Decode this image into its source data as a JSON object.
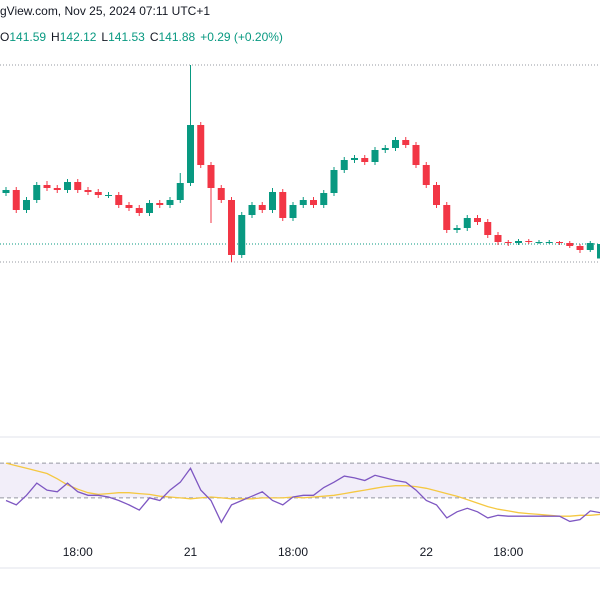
{
  "chart_data": {
    "type": "candlestick",
    "source": "gView.com, Nov 25, 2024 07:11 UTC+1",
    "ohlc_header": [
      {
        "label": "O",
        "value": "141.59"
      },
      {
        "label": "H",
        "value": "142.12"
      },
      {
        "label": "L",
        "value": "141.53"
      },
      {
        "label": "C",
        "value": "141.88"
      }
    ],
    "change": "+0.29 (+0.20%)",
    "up_color": "#089981",
    "down_color": "#f23645",
    "ylim": [
      138.16,
      146.76
    ],
    "xticks": [
      {
        "value": 7,
        "label": "18:00"
      },
      {
        "value": 18,
        "label": "21"
      },
      {
        "value": 28,
        "label": "18:00"
      },
      {
        "value": 41,
        "label": "22"
      },
      {
        "value": 49,
        "label": "18:00"
      }
    ],
    "ohlc": [
      [
        142.9,
        143.02,
        142.84,
        142.96
      ],
      [
        142.96,
        143.02,
        142.5,
        142.56
      ],
      [
        142.56,
        142.82,
        142.5,
        142.76
      ],
      [
        142.76,
        143.12,
        142.7,
        143.06
      ],
      [
        143.06,
        143.14,
        142.94,
        143.0
      ],
      [
        143.0,
        143.06,
        142.9,
        142.96
      ],
      [
        142.96,
        143.18,
        142.9,
        143.12
      ],
      [
        143.12,
        143.18,
        142.9,
        142.96
      ],
      [
        142.96,
        143.02,
        142.86,
        142.92
      ],
      [
        142.92,
        142.98,
        142.8,
        142.86
      ],
      [
        142.86,
        142.92,
        142.8,
        142.86
      ],
      [
        142.86,
        142.92,
        142.6,
        142.66
      ],
      [
        142.66,
        142.72,
        142.54,
        142.6
      ],
      [
        142.6,
        142.66,
        142.44,
        142.5
      ],
      [
        142.5,
        142.76,
        142.44,
        142.7
      ],
      [
        142.7,
        142.76,
        142.6,
        142.66
      ],
      [
        142.66,
        142.82,
        142.6,
        142.76
      ],
      [
        142.76,
        143.3,
        142.7,
        143.1
      ],
      [
        143.1,
        145.46,
        143.04,
        144.26
      ],
      [
        144.26,
        144.32,
        143.4,
        143.46
      ],
      [
        143.46,
        143.52,
        142.3,
        143.0
      ],
      [
        143.0,
        143.06,
        142.7,
        142.76
      ],
      [
        142.76,
        142.82,
        141.52,
        141.66
      ],
      [
        141.66,
        142.52,
        141.6,
        142.46
      ],
      [
        142.46,
        142.72,
        142.4,
        142.66
      ],
      [
        142.66,
        142.72,
        142.5,
        142.56
      ],
      [
        142.56,
        143.0,
        142.5,
        142.92
      ],
      [
        142.92,
        142.98,
        142.34,
        142.4
      ],
      [
        142.4,
        142.72,
        142.34,
        142.66
      ],
      [
        142.66,
        142.82,
        142.6,
        142.76
      ],
      [
        142.76,
        142.82,
        142.6,
        142.66
      ],
      [
        142.66,
        142.96,
        142.6,
        142.9
      ],
      [
        142.9,
        143.42,
        142.84,
        143.36
      ],
      [
        143.36,
        143.62,
        143.3,
        143.56
      ],
      [
        143.56,
        143.66,
        143.5,
        143.6
      ],
      [
        143.6,
        143.66,
        143.46,
        143.52
      ],
      [
        143.52,
        143.82,
        143.46,
        143.76
      ],
      [
        143.76,
        143.86,
        143.7,
        143.8
      ],
      [
        143.8,
        144.02,
        143.74,
        143.96
      ],
      [
        143.96,
        144.02,
        143.8,
        143.86
      ],
      [
        143.86,
        143.92,
        143.4,
        143.46
      ],
      [
        143.46,
        143.52,
        143.0,
        143.06
      ],
      [
        143.06,
        143.12,
        142.6,
        142.66
      ],
      [
        142.66,
        142.72,
        142.1,
        142.16
      ],
      [
        142.16,
        142.26,
        142.1,
        142.2
      ],
      [
        142.2,
        142.46,
        142.14,
        142.4
      ],
      [
        142.4,
        142.46,
        142.26,
        142.32
      ],
      [
        142.32,
        142.38,
        142.0,
        142.06
      ],
      [
        142.06,
        142.12,
        141.86,
        141.92
      ],
      [
        141.92,
        141.96,
        141.84,
        141.9
      ],
      [
        141.9,
        141.98,
        141.86,
        141.94
      ],
      [
        141.94,
        141.98,
        141.88,
        141.92
      ],
      [
        141.92,
        141.96,
        141.88,
        141.92
      ],
      [
        141.92,
        141.96,
        141.88,
        141.92
      ],
      [
        141.92,
        141.94,
        141.86,
        141.9
      ],
      [
        141.9,
        141.94,
        141.8,
        141.84
      ],
      [
        141.84,
        141.88,
        141.7,
        141.76
      ],
      [
        141.76,
        141.94,
        141.72,
        141.9
      ],
      [
        141.59,
        142.12,
        141.53,
        141.88
      ]
    ],
    "rsi": {
      "ylim": [
        0,
        100
      ],
      "levels": [
        70,
        30
      ],
      "color": "#7e57c2",
      "ma_color": "#f5c842",
      "band_color": "#7e57c2",
      "values": [
        27,
        22,
        33,
        47,
        39,
        37,
        47,
        37,
        33,
        33,
        31,
        27,
        22,
        16,
        30,
        27,
        39,
        48,
        64,
        39,
        27,
        2,
        22,
        27,
        32,
        37,
        27,
        22,
        31,
        33,
        33,
        42,
        48,
        55,
        53,
        50,
        56,
        53,
        50,
        48,
        39,
        27,
        22,
        7,
        14,
        18,
        14,
        7,
        10,
        9,
        9,
        9,
        9,
        9,
        9,
        3,
        5,
        15,
        13
      ],
      "ma": [
        70,
        67,
        64,
        61,
        58,
        52,
        45,
        40,
        36,
        34,
        35,
        36,
        36,
        35,
        34,
        32,
        31,
        30,
        29,
        30,
        31,
        30,
        29,
        29,
        29,
        30,
        30,
        30,
        31,
        30,
        31,
        32,
        33,
        35,
        37,
        39,
        41,
        43,
        44,
        44,
        43,
        41,
        38,
        35,
        32,
        28,
        24,
        20,
        17,
        15,
        13,
        12,
        11,
        10,
        9,
        9,
        10,
        10,
        11
      ]
    }
  }
}
